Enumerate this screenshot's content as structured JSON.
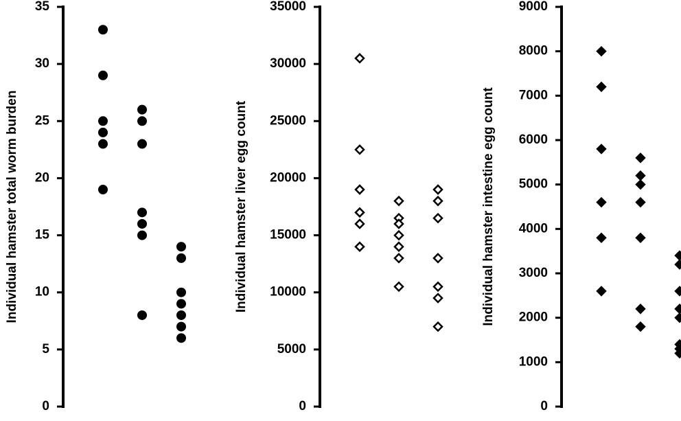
{
  "chart_data": [
    {
      "type": "strip",
      "ylabel": "Individual hamster total worm burden",
      "ylim": [
        0,
        35
      ],
      "yticks": [
        0,
        5,
        10,
        15,
        20,
        25,
        30,
        35
      ],
      "marker": "circle",
      "filled": true,
      "color": "#000000",
      "groups": [
        [
          33,
          29,
          25,
          24,
          23,
          19
        ],
        [
          26,
          25,
          23,
          17,
          16,
          15,
          8
        ],
        [
          14,
          13,
          10,
          9,
          8,
          7,
          6
        ]
      ]
    },
    {
      "type": "strip",
      "ylabel": "Individual hamster liver egg count",
      "ylim": [
        0,
        35000
      ],
      "yticks": [
        0,
        5000,
        10000,
        15000,
        20000,
        25000,
        30000,
        35000
      ],
      "marker": "diamond",
      "filled": false,
      "color": "#000000",
      "groups": [
        [
          30500,
          22500,
          19000,
          17000,
          16000,
          14000
        ],
        [
          18000,
          16500,
          16000,
          15000,
          14000,
          13000,
          10500
        ],
        [
          19000,
          18000,
          16500,
          13000,
          10500,
          9500,
          7000
        ]
      ]
    },
    {
      "type": "strip",
      "ylabel": "Individual hamster intestine egg count",
      "ylim": [
        0,
        9000
      ],
      "yticks": [
        0,
        1000,
        2000,
        3000,
        4000,
        5000,
        6000,
        7000,
        8000,
        9000
      ],
      "marker": "diamond",
      "filled": true,
      "color": "#000000",
      "groups": [
        [
          8000,
          7200,
          5800,
          4600,
          3800,
          2600
        ],
        [
          5600,
          5200,
          5000,
          4600,
          3800,
          2200,
          1800
        ],
        [
          3400,
          3200,
          2600,
          2200,
          2000,
          1400,
          1300,
          1200
        ]
      ]
    }
  ]
}
